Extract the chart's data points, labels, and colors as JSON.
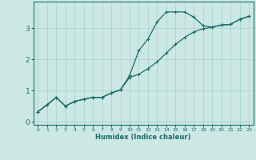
{
  "xlabel": "Humidex (Indice chaleur)",
  "ylabel": "",
  "bg_color": "#cce8e5",
  "line_color": "#1a6b6b",
  "grid_color": "#add4cf",
  "xlim": [
    -0.5,
    23.5
  ],
  "ylim": [
    -0.1,
    3.85
  ],
  "yticks": [
    0,
    1,
    2,
    3
  ],
  "xticks": [
    0,
    1,
    2,
    3,
    4,
    5,
    6,
    7,
    8,
    9,
    10,
    11,
    12,
    13,
    14,
    15,
    16,
    17,
    18,
    19,
    20,
    21,
    22,
    23
  ],
  "line1_x": [
    0,
    1,
    2,
    3,
    4,
    5,
    6,
    7,
    8,
    9,
    10,
    11,
    12,
    13,
    14,
    15,
    16,
    17,
    18,
    19,
    20,
    21,
    22,
    23
  ],
  "line1_y": [
    0.32,
    0.53,
    0.78,
    0.5,
    0.65,
    0.72,
    0.78,
    0.78,
    0.92,
    1.02,
    1.48,
    2.28,
    2.65,
    3.2,
    3.52,
    3.52,
    3.52,
    3.35,
    3.08,
    3.03,
    3.1,
    3.12,
    3.28,
    3.38
  ],
  "line2_x": [
    0,
    2,
    3,
    4,
    5,
    6,
    7,
    8,
    9,
    10,
    11,
    12,
    13,
    14,
    15,
    16,
    17,
    18,
    19,
    20,
    21,
    22,
    23
  ],
  "line2_y": [
    0.32,
    0.78,
    0.5,
    0.65,
    0.72,
    0.78,
    0.78,
    0.92,
    1.02,
    1.42,
    1.52,
    1.7,
    1.92,
    2.2,
    2.48,
    2.7,
    2.88,
    2.98,
    3.03,
    3.1,
    3.12,
    3.28,
    3.38
  ]
}
